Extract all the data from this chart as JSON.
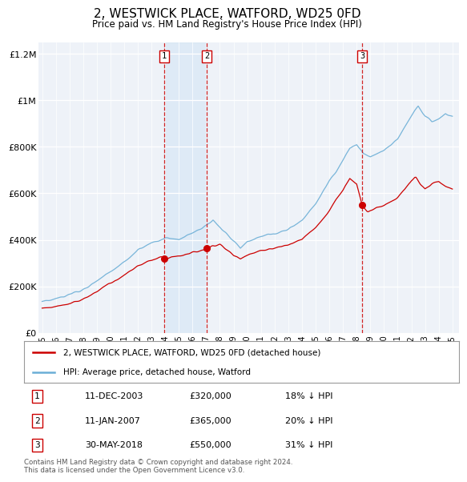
{
  "title": "2, WESTWICK PLACE, WATFORD, WD25 0FD",
  "subtitle": "Price paid vs. HM Land Registry's House Price Index (HPI)",
  "ylim": [
    0,
    1250000
  ],
  "yticks": [
    0,
    200000,
    400000,
    600000,
    800000,
    1000000,
    1200000
  ],
  "ytick_labels": [
    "£0",
    "£200K",
    "£400K",
    "£600K",
    "£800K",
    "£1M",
    "£1.2M"
  ],
  "hpi_color": "#6baed6",
  "hpi_fill_color": "#d0e4f5",
  "price_color": "#cc0000",
  "vline_color": "#cc0000",
  "sale_dates": [
    2003.94,
    2007.03,
    2018.41
  ],
  "sale_prices": [
    320000,
    365000,
    550000
  ],
  "sale_numbers": [
    "1",
    "2",
    "3"
  ],
  "legend_entries": [
    "2, WESTWICK PLACE, WATFORD, WD25 0FD (detached house)",
    "HPI: Average price, detached house, Watford"
  ],
  "table_data": [
    [
      "1",
      "11-DEC-2003",
      "£320,000",
      "18% ↓ HPI"
    ],
    [
      "2",
      "11-JAN-2007",
      "£365,000",
      "20% ↓ HPI"
    ],
    [
      "3",
      "30-MAY-2018",
      "£550,000",
      "31% ↓ HPI"
    ]
  ],
  "footer": "Contains HM Land Registry data © Crown copyright and database right 2024.\nThis data is licensed under the Open Government Licence v3.0.",
  "background_color": "#ffffff",
  "plot_bg_color": "#eef2f8"
}
